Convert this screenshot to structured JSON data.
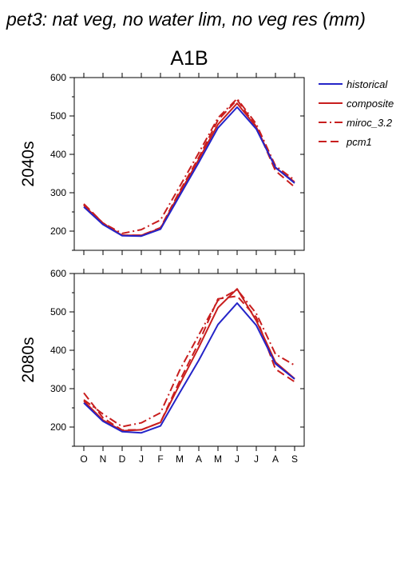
{
  "title": "pet3: nat veg, no water lim, no veg res (mm)",
  "scenario": "A1B",
  "legend": [
    {
      "name": "historical",
      "color": "#2424c8",
      "dash": ""
    },
    {
      "name": "composite",
      "color": "#c81e1e",
      "dash": ""
    },
    {
      "name": "miroc_3.2",
      "color": "#c81e1e",
      "dash": "10,4,2,4"
    },
    {
      "name": "pcm1",
      "color": "#c81e1e",
      "dash": "10,5"
    }
  ],
  "chart_data": [
    {
      "type": "line",
      "panel": "2040s",
      "ylabel": "2040s",
      "categories": [
        "O",
        "N",
        "D",
        "J",
        "F",
        "M",
        "A",
        "M",
        "J",
        "J",
        "A",
        "S"
      ],
      "ylim": [
        150,
        600
      ],
      "yticks": [
        200,
        300,
        400,
        500,
        600
      ],
      "series": [
        {
          "name": "historical",
          "values": [
            263,
            217,
            188,
            187,
            205,
            292,
            379,
            469,
            523,
            466,
            366,
            325
          ]
        },
        {
          "name": "composite",
          "values": [
            267,
            219,
            189,
            189,
            207,
            299,
            387,
            478,
            533,
            471,
            365,
            328
          ]
        },
        {
          "name": "miroc_3.2",
          "values": [
            269,
            221,
            194,
            204,
            229,
            316,
            404,
            495,
            545,
            479,
            370,
            333
          ]
        },
        {
          "name": "pcm1",
          "values": [
            271,
            221,
            189,
            189,
            209,
            304,
            392,
            489,
            542,
            472,
            357,
            315
          ]
        }
      ]
    },
    {
      "type": "line",
      "panel": "2080s",
      "ylabel": "2080s",
      "categories": [
        "O",
        "N",
        "D",
        "J",
        "F",
        "M",
        "A",
        "M",
        "J",
        "J",
        "A",
        "S"
      ],
      "ylim": [
        150,
        600
      ],
      "yticks": [
        200,
        300,
        400,
        500,
        600
      ],
      "series": [
        {
          "name": "historical",
          "values": [
            263,
            215,
            188,
            185,
            203,
            289,
            374,
            467,
            523,
            465,
            365,
            325
          ]
        },
        {
          "name": "composite",
          "values": [
            268,
            218,
            190,
            193,
            212,
            311,
            408,
            511,
            560,
            477,
            369,
            326
          ]
        },
        {
          "name": "miroc_3.2",
          "values": [
            271,
            234,
            201,
            211,
            237,
            348,
            440,
            530,
            558,
            496,
            390,
            361
          ]
        },
        {
          "name": "pcm1",
          "values": [
            289,
            224,
            192,
            193,
            212,
            320,
            420,
            534,
            541,
            486,
            351,
            318
          ]
        }
      ]
    }
  ]
}
